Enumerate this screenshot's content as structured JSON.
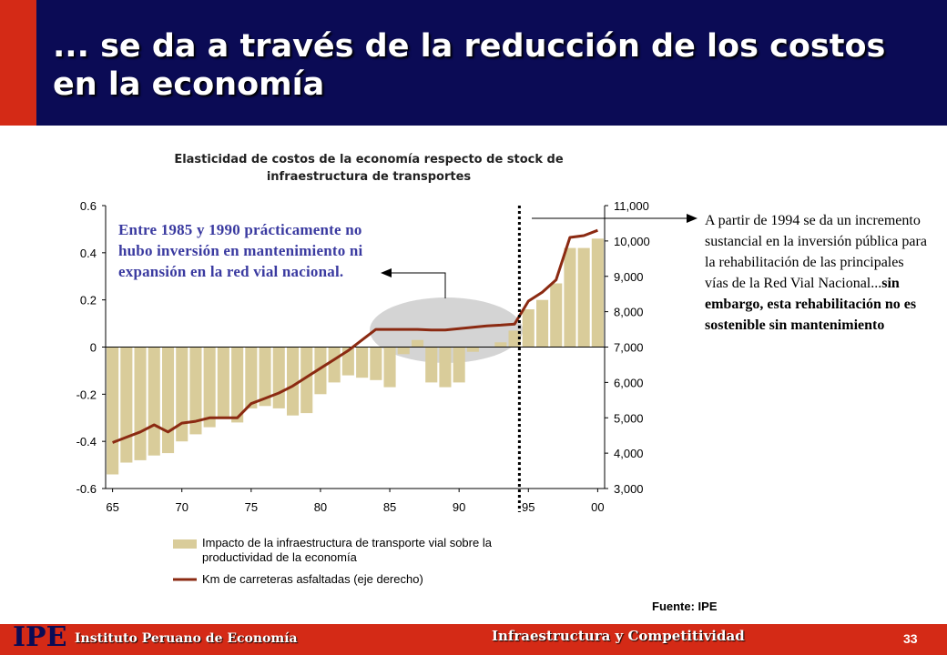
{
  "header": {
    "title": "... se da a través de la reducción de los costos en la economía"
  },
  "annotations": {
    "left": "Entre 1985 y 1990 prácticamente no hubo inversión en mantenimiento ni expansión en la red vial nacional.",
    "right_plain": "A partir de 1994 se da un incremento sustancial en la inversión pública para la rehabilitación de las principales vías de la Red Vial Nacional...",
    "right_bold": "sin embargo, esta rehabilitación no es sostenible sin mantenimiento"
  },
  "source": "Fuente: IPE",
  "footer": {
    "logo": "IPE",
    "org": "Instituto Peruano de Economía",
    "topic": "Infraestructura y Competitividad",
    "page": "33"
  },
  "colors": {
    "bar": "#d9cc9a",
    "line": "#8b2a12",
    "header": "#0b0b55",
    "accent_red": "#d42a16",
    "annotation": "#3a3aa0"
  },
  "chart_data": {
    "type": "bar",
    "title": "Elasticidad de costos de la economía respecto de stock de infraestructura de transportes",
    "x_ticks": [
      "65",
      "70",
      "75",
      "80",
      "85",
      "90",
      "95",
      "00"
    ],
    "years": [
      1965,
      1966,
      1967,
      1968,
      1969,
      1970,
      1971,
      1972,
      1973,
      1974,
      1975,
      1976,
      1977,
      1978,
      1979,
      1980,
      1981,
      1982,
      1983,
      1984,
      1985,
      1986,
      1987,
      1988,
      1989,
      1990,
      1991,
      1992,
      1993,
      1994,
      1995,
      1996,
      1997,
      1998,
      1999,
      2000
    ],
    "ylim_left": [
      -0.6,
      0.6
    ],
    "yticks_left": [
      "0.6",
      "0.4",
      "0.2",
      "0",
      "-0.2",
      "-0.4",
      "-0.6"
    ],
    "ylim_right": [
      3000,
      11000
    ],
    "yticks_right": [
      "11,000",
      "10,000",
      "9,000",
      "8,000",
      "7,000",
      "6,000",
      "5,000",
      "4,000",
      "3,000"
    ],
    "series": [
      {
        "name": "Impacto de la infraestructura de transporte vial sobre la productividad de la economía",
        "type": "bar",
        "axis": "left",
        "values": [
          -0.54,
          -0.49,
          -0.48,
          -0.46,
          -0.45,
          -0.4,
          -0.37,
          -0.34,
          -0.3,
          -0.32,
          -0.26,
          -0.25,
          -0.26,
          -0.29,
          -0.28,
          -0.2,
          -0.15,
          -0.12,
          -0.13,
          -0.14,
          -0.17,
          -0.03,
          0.03,
          -0.15,
          -0.17,
          -0.15,
          -0.02,
          0.0,
          0.02,
          0.07,
          0.16,
          0.2,
          0.27,
          0.42,
          0.42,
          0.46
        ]
      },
      {
        "name": "Km de carreteras asfaltadas (eje derecho)",
        "type": "line",
        "axis": "right",
        "values": [
          4300,
          4450,
          4600,
          4800,
          4600,
          4850,
          4900,
          5000,
          5000,
          5000,
          5400,
          5550,
          5700,
          5900,
          6150,
          6400,
          6650,
          6900,
          7200,
          7500,
          7500,
          7500,
          7500,
          7480,
          7480,
          7520,
          7560,
          7600,
          7620,
          7650,
          8300,
          8550,
          8900,
          10100,
          10150,
          10300
        ]
      }
    ],
    "annotations": [
      "dotted vertical line at 1994",
      "shaded ellipse around 1985-1990"
    ],
    "grid": false,
    "legend_position": "bottom"
  }
}
